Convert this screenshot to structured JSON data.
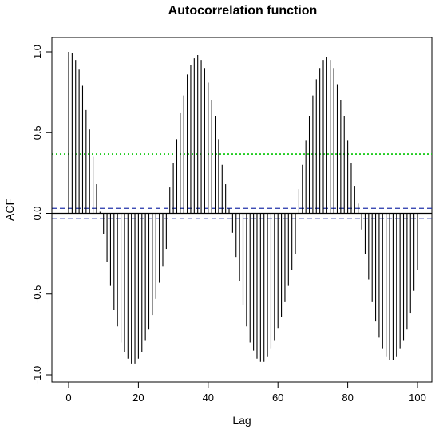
{
  "chart_data": {
    "type": "bar",
    "title": "Autocorrelation function",
    "xlabel": "Lag",
    "ylabel": "ACF",
    "xlim": [
      -2,
      102
    ],
    "ylim": [
      -1.0,
      1.0
    ],
    "x_ticks": [
      0,
      20,
      40,
      60,
      80,
      100
    ],
    "x_tick_labels": [
      "0",
      "20",
      "40",
      "60",
      "80",
      "100"
    ],
    "y_ticks": [
      -1.0,
      -0.5,
      0.0,
      0.5,
      1.0
    ],
    "y_tick_labels": [
      "-1.0",
      "-0.5",
      "0.0",
      "0.5",
      "1.0"
    ],
    "grid": false,
    "series": [
      {
        "type": "spikes",
        "color": "#000000",
        "x": [
          0,
          1,
          2,
          3,
          4,
          5,
          6,
          7,
          8,
          9,
          10,
          11,
          12,
          13,
          14,
          15,
          16,
          17,
          18,
          19,
          20,
          21,
          22,
          23,
          24,
          25,
          26,
          27,
          28,
          29,
          30,
          31,
          32,
          33,
          34,
          35,
          36,
          37,
          38,
          39,
          40,
          41,
          42,
          43,
          44,
          45,
          46,
          47,
          48,
          49,
          50,
          51,
          52,
          53,
          54,
          55,
          56,
          57,
          58,
          59,
          60,
          61,
          62,
          63,
          64,
          65,
          66,
          67,
          68,
          69,
          70,
          71,
          72,
          73,
          74,
          75,
          76,
          77,
          78,
          79,
          80,
          81,
          82,
          83,
          84,
          85,
          86,
          87,
          88,
          89,
          90,
          91,
          92,
          93,
          94,
          95,
          96,
          97,
          98,
          99,
          100
        ],
        "values": [
          1.0,
          0.99,
          0.95,
          0.89,
          0.79,
          0.64,
          0.52,
          0.35,
          0.18,
          0.01,
          -0.13,
          -0.3,
          -0.45,
          -0.6,
          -0.7,
          -0.8,
          -0.86,
          -0.9,
          -0.93,
          -0.93,
          -0.9,
          -0.86,
          -0.79,
          -0.72,
          -0.63,
          -0.53,
          -0.43,
          -0.33,
          -0.22,
          0.16,
          0.31,
          0.46,
          0.62,
          0.73,
          0.86,
          0.92,
          0.96,
          0.98,
          0.95,
          0.9,
          0.81,
          0.7,
          0.6,
          0.46,
          0.3,
          0.18,
          0.03,
          -0.12,
          -0.27,
          -0.42,
          -0.57,
          -0.7,
          -0.8,
          -0.85,
          -0.9,
          -0.92,
          -0.92,
          -0.89,
          -0.84,
          -0.79,
          -0.71,
          -0.64,
          -0.55,
          -0.45,
          -0.35,
          -0.25,
          0.15,
          0.3,
          0.45,
          0.6,
          0.73,
          0.83,
          0.9,
          0.95,
          0.97,
          0.95,
          0.9,
          0.8,
          0.7,
          0.6,
          0.45,
          0.31,
          0.17,
          0.06,
          -0.1,
          -0.25,
          -0.41,
          -0.55,
          -0.67,
          -0.77,
          -0.84,
          -0.89,
          -0.91,
          -0.91,
          -0.89,
          -0.84,
          -0.79,
          -0.72,
          -0.62,
          -0.48,
          -0.35
        ]
      },
      {
        "type": "hline",
        "y": 0.0,
        "color": "#000000",
        "style": "solid"
      },
      {
        "type": "hline",
        "y": 0.031,
        "color": "#2233aa",
        "style": "dashed"
      },
      {
        "type": "hline",
        "y": -0.031,
        "color": "#2233aa",
        "style": "dashed"
      },
      {
        "type": "hline",
        "y": 0.367,
        "color": "#22cc22",
        "style": "dotted"
      }
    ]
  }
}
